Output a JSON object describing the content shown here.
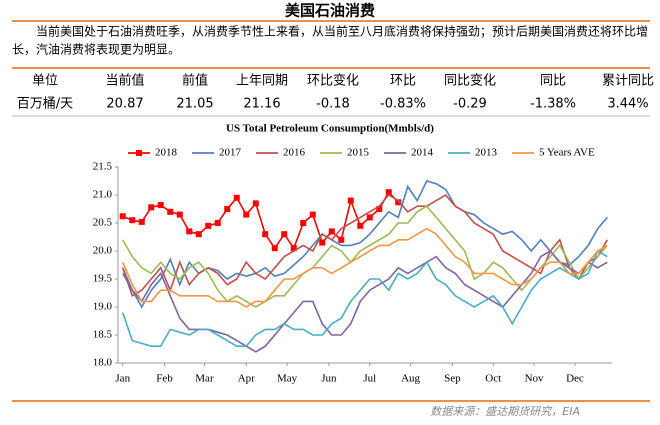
{
  "header": {
    "title": "美国石油消费"
  },
  "summary": [
    "当前美国处于石油消费旺季，从消费季节性上来看，从当前至八月底消费将保持强劲；预计后期美国消费还将环比增",
    "长，汽油消费将表现更为明显。"
  ],
  "table": {
    "headers": [
      "单位",
      "当前值",
      "前值",
      "上年同期",
      "环比变化",
      "环比",
      "同比变化",
      "同比",
      "累计同比"
    ],
    "rows": [
      [
        "百万桶/天",
        "20.87",
        "21.05",
        "21.16",
        "-0.18",
        "-0.83%",
        "-0.29",
        "-1.38%",
        "3.44%"
      ]
    ]
  },
  "chart_data": {
    "type": "line",
    "title": "US Total Petroleum Consumption(Mmbls/d)",
    "x": [
      1,
      2,
      3,
      4,
      5,
      6,
      7,
      8,
      9,
      10,
      11,
      12,
      13,
      14,
      15,
      16,
      17,
      18,
      19,
      20,
      21,
      22,
      23,
      24,
      25,
      26,
      27,
      28,
      29,
      30,
      31,
      32,
      33,
      34,
      35,
      36,
      37,
      38,
      39,
      40,
      41,
      42,
      43,
      44,
      45,
      46,
      47,
      48,
      49,
      50,
      51,
      52
    ],
    "xlim": [
      0.5,
      52.5
    ],
    "xticks": [
      {
        "value": 1,
        "label": "Jan"
      },
      {
        "value": 5.4,
        "label": "Feb"
      },
      {
        "value": 9.6,
        "label": "Mar"
      },
      {
        "value": 14,
        "label": "Apr"
      },
      {
        "value": 18.3,
        "label": "May"
      },
      {
        "value": 22.7,
        "label": "Jun"
      },
      {
        "value": 27,
        "label": "Jul"
      },
      {
        "value": 31.3,
        "label": "Aug"
      },
      {
        "value": 35.7,
        "label": "Sep"
      },
      {
        "value": 40,
        "label": "Oct"
      },
      {
        "value": 44.3,
        "label": "Nov"
      },
      {
        "value": 48.6,
        "label": "Dec"
      }
    ],
    "ylim": [
      18.0,
      21.5
    ],
    "yticks": [
      {
        "value": 18.0,
        "label": "18.0"
      },
      18.5,
      {
        "value": 19.0,
        "label": "19.0"
      },
      19.5,
      {
        "value": 20.0,
        "label": "20.0"
      },
      20.5,
      {
        "value": 21.0,
        "label": "21.0"
      },
      21.5
    ],
    "series": [
      {
        "name": "2018",
        "color": "#ff0000",
        "markers": true,
        "values": [
          20.62,
          20.55,
          20.52,
          20.78,
          20.82,
          20.7,
          20.65,
          20.35,
          20.3,
          20.45,
          20.5,
          20.75,
          20.95,
          20.65,
          20.85,
          20.3,
          20.05,
          20.3,
          20.05,
          20.5,
          20.65,
          20.15,
          20.35,
          20.2,
          20.9,
          20.45,
          20.6,
          20.75,
          21.05,
          20.87,
          null,
          null,
          null,
          null,
          null,
          null,
          null,
          null,
          null,
          null,
          null,
          null,
          null,
          null,
          null,
          null,
          null,
          null,
          null,
          null,
          null,
          null
        ]
      },
      {
        "name": "2017",
        "color": "#4f81bd",
        "values": [
          19.7,
          19.3,
          19.0,
          19.3,
          19.5,
          19.85,
          19.4,
          19.8,
          19.6,
          19.7,
          19.65,
          19.5,
          19.6,
          19.55,
          19.6,
          19.7,
          19.55,
          19.6,
          19.75,
          19.9,
          20.1,
          20.3,
          20.2,
          20.1,
          20.1,
          20.15,
          20.3,
          20.5,
          20.7,
          20.6,
          21.15,
          20.9,
          21.25,
          21.2,
          21.1,
          20.8,
          20.7,
          20.65,
          20.5,
          20.4,
          20.3,
          20.35,
          20.2,
          20.0,
          20.2,
          20.0,
          19.8,
          19.75,
          19.9,
          20.1,
          20.4,
          20.6
        ]
      },
      {
        "name": "2016",
        "color": "#c0504d",
        "values": [
          19.7,
          19.2,
          19.3,
          19.5,
          19.7,
          19.3,
          19.8,
          19.4,
          19.6,
          19.7,
          19.6,
          19.4,
          19.5,
          19.8,
          19.6,
          19.5,
          19.7,
          19.9,
          20.0,
          20.1,
          20.0,
          20.3,
          20.2,
          20.4,
          20.5,
          20.6,
          20.7,
          20.8,
          21.0,
          20.9,
          20.7,
          20.8,
          20.8,
          20.9,
          21.0,
          20.8,
          20.7,
          20.5,
          20.4,
          20.3,
          20.0,
          19.9,
          19.8,
          19.7,
          19.6,
          20.0,
          20.2,
          19.7,
          19.5,
          19.8,
          19.9,
          20.2
        ]
      },
      {
        "name": "2015",
        "color": "#9bbb59",
        "values": [
          20.2,
          19.9,
          19.7,
          19.6,
          19.8,
          19.6,
          19.5,
          19.7,
          19.8,
          19.6,
          19.3,
          19.1,
          19.2,
          19.1,
          19.0,
          19.1,
          19.2,
          19.2,
          19.4,
          19.6,
          19.7,
          19.9,
          20.1,
          20.0,
          19.8,
          20.0,
          20.1,
          20.2,
          20.3,
          20.5,
          20.5,
          20.7,
          20.8,
          20.6,
          20.4,
          20.2,
          20.0,
          19.5,
          19.6,
          19.8,
          19.7,
          19.5,
          19.3,
          19.5,
          19.7,
          19.9,
          20.1,
          19.8,
          19.5,
          19.7,
          19.9,
          20.1
        ]
      },
      {
        "name": "2014",
        "color": "#8064a2",
        "values": [
          19.6,
          19.3,
          19.1,
          19.4,
          19.6,
          19.2,
          18.8,
          18.6,
          18.6,
          18.6,
          18.55,
          18.5,
          18.4,
          18.3,
          18.2,
          18.3,
          18.5,
          18.7,
          18.9,
          19.1,
          19.1,
          18.7,
          18.5,
          18.5,
          18.7,
          19.1,
          19.3,
          19.4,
          19.5,
          19.7,
          19.6,
          19.7,
          19.8,
          19.9,
          19.7,
          19.6,
          19.4,
          19.3,
          19.2,
          19.1,
          19.0,
          19.2,
          19.4,
          19.6,
          19.9,
          20.0,
          19.8,
          19.7,
          19.6,
          19.8,
          19.7,
          19.8
        ]
      },
      {
        "name": "2013",
        "color": "#4bacc6",
        "values": [
          18.9,
          18.4,
          18.35,
          18.3,
          18.3,
          18.6,
          18.55,
          18.5,
          18.6,
          18.6,
          18.5,
          18.4,
          18.3,
          18.3,
          18.5,
          18.6,
          18.6,
          18.7,
          18.6,
          18.6,
          18.5,
          18.5,
          18.7,
          18.8,
          19.1,
          19.3,
          19.5,
          19.5,
          19.3,
          19.6,
          19.5,
          19.6,
          19.8,
          19.5,
          19.4,
          19.2,
          19.1,
          19.0,
          19.1,
          19.2,
          19.0,
          18.7,
          19.0,
          19.3,
          19.5,
          19.6,
          19.7,
          19.6,
          19.5,
          19.6,
          20.0,
          19.9
        ]
      },
      {
        "name": "5 Years AVE",
        "color": "#f79646",
        "values": [
          19.8,
          19.4,
          19.1,
          19.1,
          19.3,
          19.3,
          19.2,
          19.2,
          19.2,
          19.2,
          19.1,
          19.1,
          19.1,
          19.0,
          19.1,
          19.1,
          19.3,
          19.5,
          19.5,
          19.6,
          19.7,
          19.7,
          19.6,
          19.7,
          19.8,
          19.9,
          20.0,
          20.1,
          20.1,
          20.2,
          20.2,
          20.3,
          20.4,
          20.3,
          20.1,
          19.9,
          19.8,
          19.6,
          19.6,
          19.6,
          19.5,
          19.4,
          19.4,
          19.5,
          19.7,
          19.8,
          19.8,
          19.6,
          19.6,
          19.8,
          20.0,
          20.1
        ]
      }
    ]
  },
  "source": "数据来源：盛达期货研究，EIA"
}
